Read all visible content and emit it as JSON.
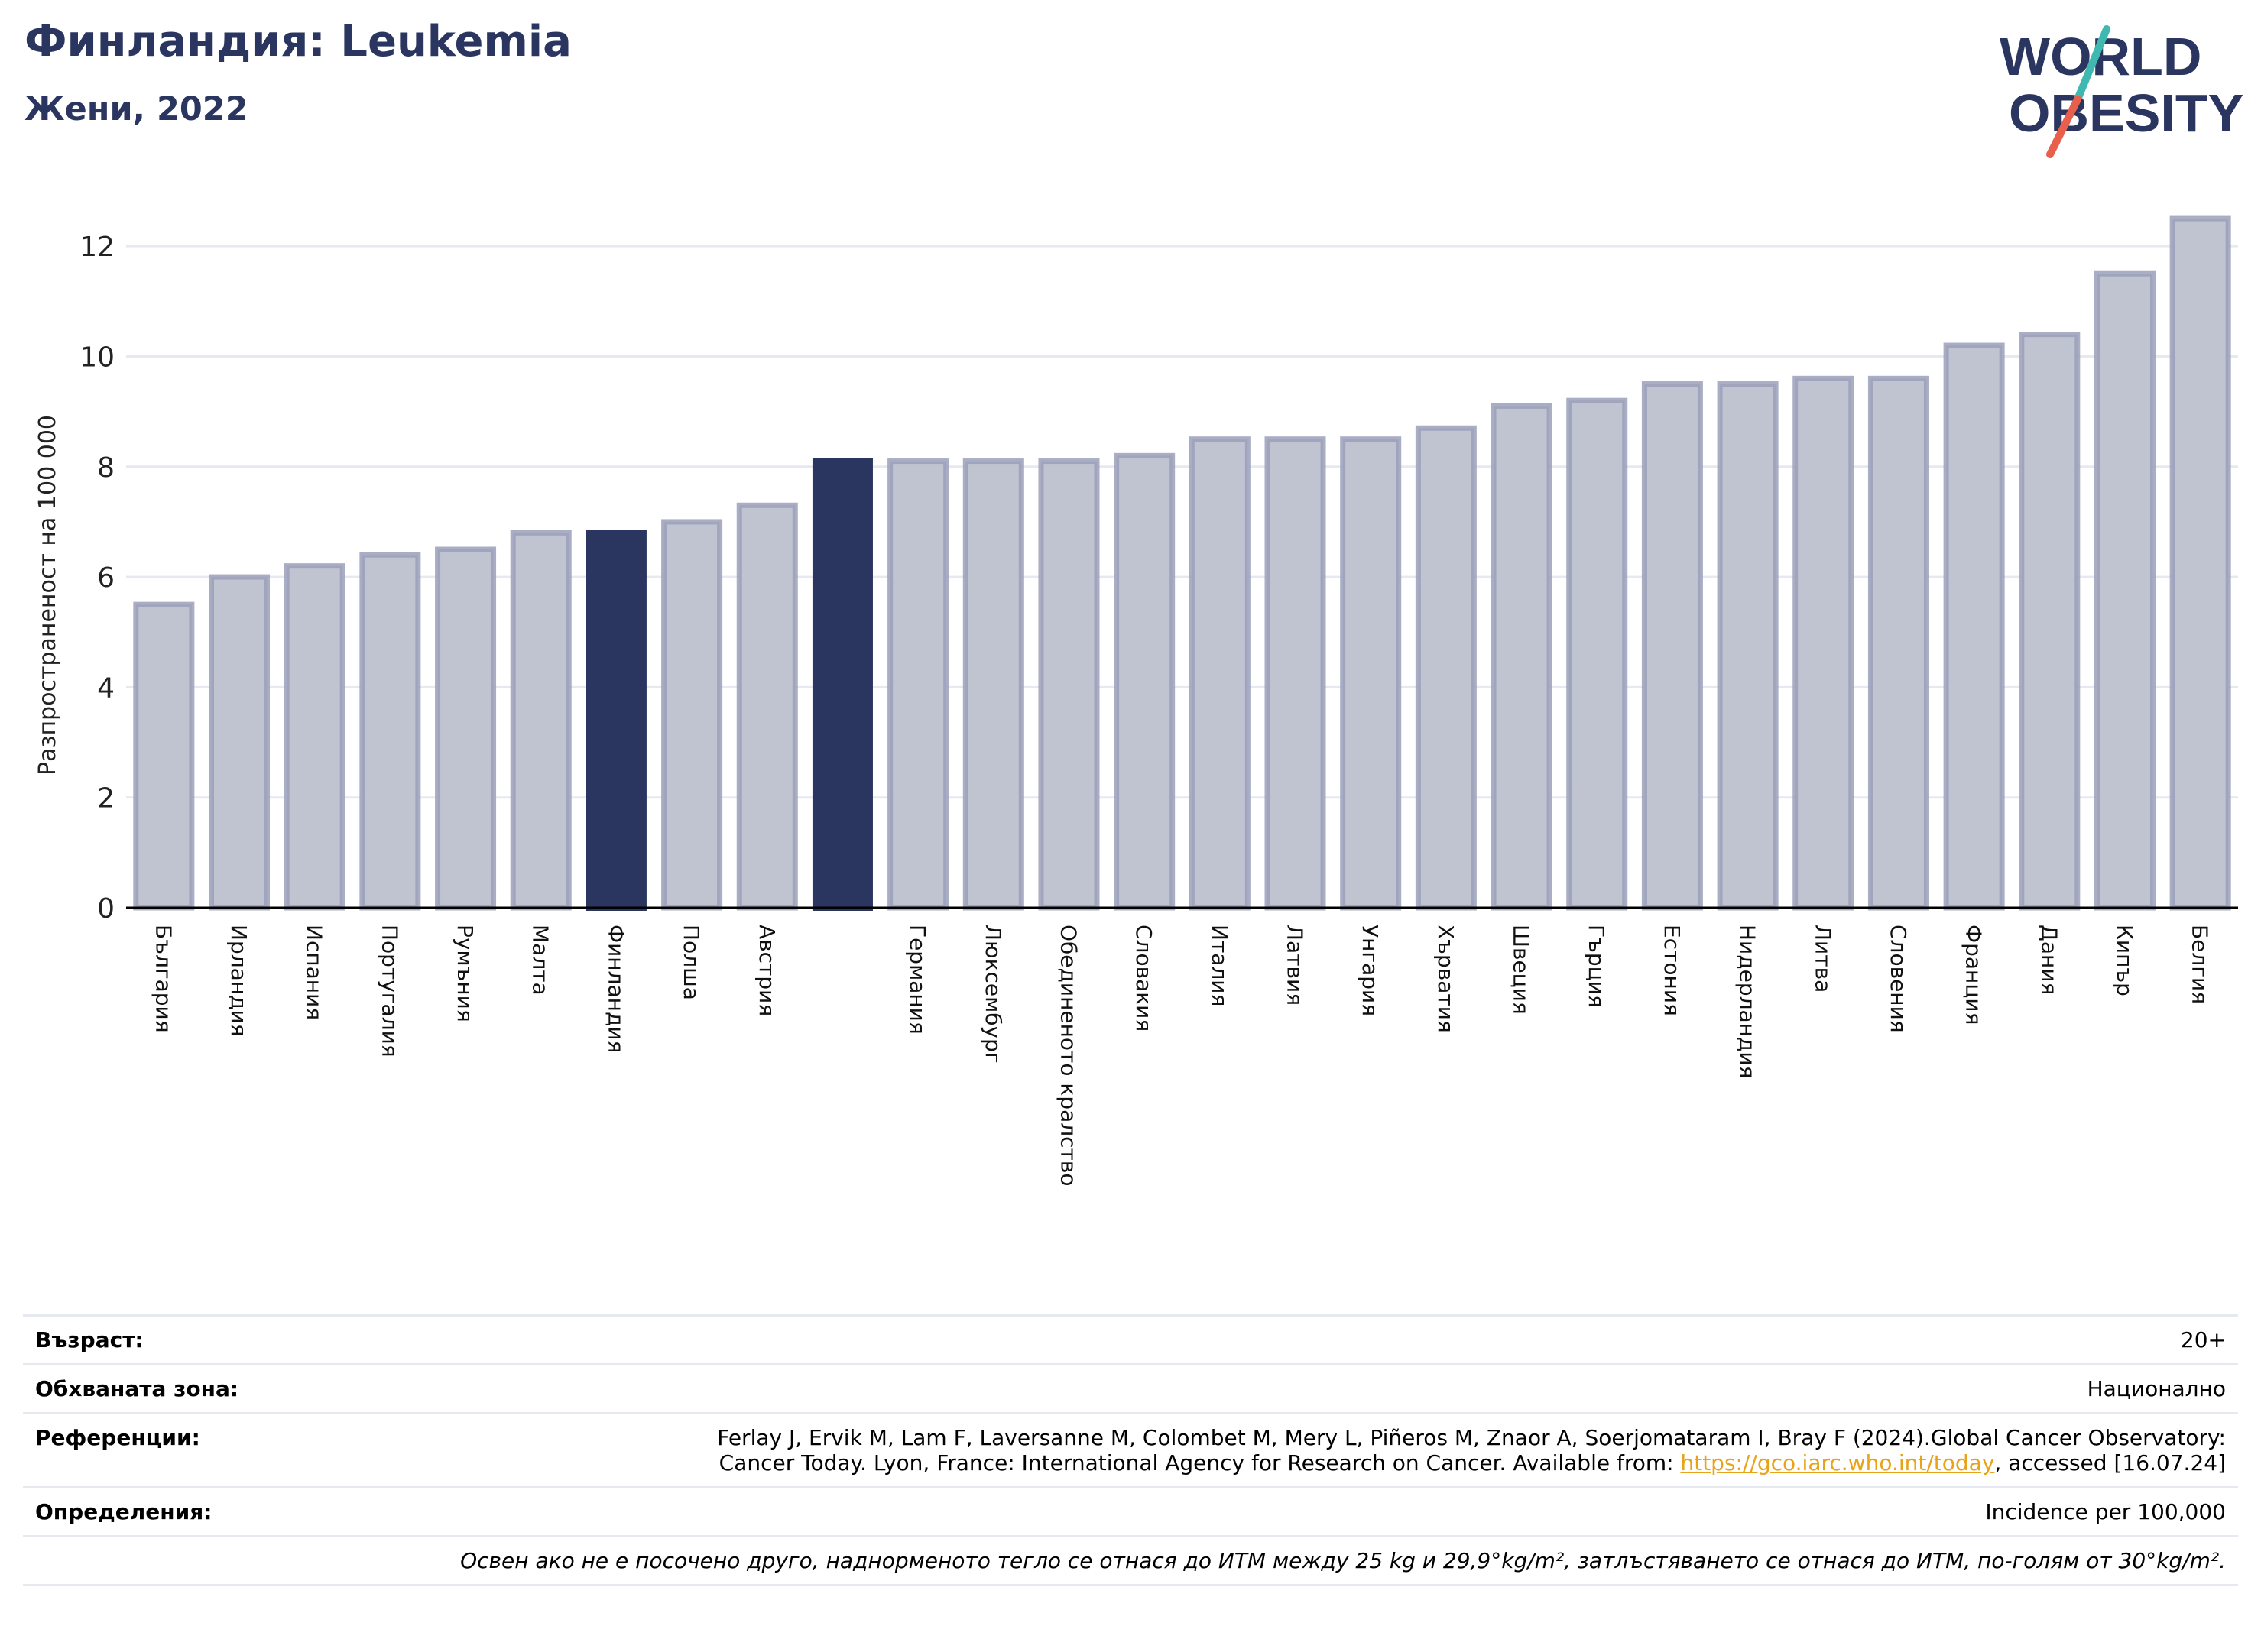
{
  "header": {
    "title": "Финландия: Leukemia",
    "subtitle": "Жени, 2022"
  },
  "logo": {
    "line1": "WORLD",
    "line2": "OBESITY",
    "colors": {
      "text": "#2a3560",
      "slash_teal": "#3fb8af",
      "slash_coral": "#e8604c"
    }
  },
  "colors": {
    "bar_fill": "#c0c4d0",
    "bar_stroke": "#9aa0ba",
    "highlight": "#2a3560",
    "grid": "#e6e9f0",
    "axis": "#000000"
  },
  "chart_data": {
    "type": "bar",
    "ylabel": "Разпространеност  на 100 000",
    "ylim": [
      0,
      13
    ],
    "yticks": [
      0,
      2,
      4,
      6,
      8,
      10,
      12
    ],
    "grid": true,
    "categories": [
      "България",
      "Ирландия",
      "Испания",
      "Португалия",
      "Румъния",
      "Малта",
      "Финландия",
      "Полша",
      "Австрия",
      "",
      "Германия",
      "Люксембург",
      "Обединеното кралство",
      "Словакия",
      "Италия",
      "Латвия",
      "Унгария",
      "Хърватия",
      "Швеция",
      "Гърция",
      "Естония",
      "Нидерландия",
      "Литва",
      "Словения",
      "Франция",
      "Дания",
      "Кипър",
      "Белгия"
    ],
    "values": [
      5.5,
      6.0,
      6.2,
      6.4,
      6.5,
      6.8,
      6.85,
      7.0,
      7.3,
      8.15,
      8.1,
      8.1,
      8.1,
      8.2,
      8.5,
      8.5,
      8.5,
      8.7,
      9.1,
      9.2,
      9.5,
      9.5,
      9.6,
      9.6,
      10.2,
      10.4,
      11.5,
      12.5
    ],
    "highlighted_indices": [
      6,
      9
    ]
  },
  "info": {
    "rows": [
      {
        "label": "Възраст:",
        "value": "20+"
      },
      {
        "label": "Обхваната зона:",
        "value": "Национално"
      },
      {
        "label": "Референции:",
        "value_line1": "Ferlay J, Ervik M, Lam F, Laversanne M, Colombet M, Mery L, Piñeros M, Znaor A, Soerjomataram I, Bray F (2024).Global Cancer Observatory:",
        "value_line2_pre": "Cancer Today. Lyon, France: International Agency for Research on Cancer. Available from: ",
        "link_text": "https://gco.iarc.who.int/today",
        "value_line2_post": ", accessed [16.07.24]"
      },
      {
        "label": "Определения:",
        "value": "Incidence per 100,000"
      }
    ],
    "footnote": "Освен ако не е посочено друго, наднорменото тегло се отнася до ИТМ между 25 kg и 29,9°kg/m², затлъстяването се отнася до ИТМ, по-голям от 30°kg/m²."
  }
}
